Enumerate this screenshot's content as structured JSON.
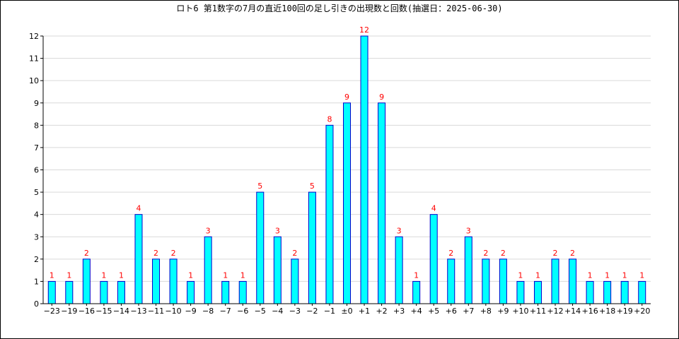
{
  "chart_data": {
    "type": "bar",
    "title": "ロト6 第1数字の7月の直近100回の足し引きの出現数と回数(抽選日：2025-06-30)",
    "xlabel": "",
    "ylabel": "",
    "ylim": [
      0,
      12
    ],
    "yticks": [
      "0",
      "1",
      "2",
      "3",
      "4",
      "5",
      "6",
      "7",
      "8",
      "9",
      "10",
      "11",
      "12"
    ],
    "grid": true,
    "legend": "none",
    "categories": [
      "−23",
      "−19",
      "−16",
      "−15",
      "−14",
      "−13",
      "−11",
      "−10",
      "−9",
      "−8",
      "−7",
      "−6",
      "−5",
      "−4",
      "−3",
      "−2",
      "−1",
      "±0",
      "+1",
      "+2",
      "+3",
      "+4",
      "+5",
      "+6",
      "+7",
      "+8",
      "+9",
      "+10",
      "+11",
      "+12",
      "+14",
      "+16",
      "+18",
      "+19",
      "+20"
    ],
    "values": [
      1,
      1,
      2,
      1,
      1,
      4,
      2,
      2,
      1,
      3,
      1,
      1,
      5,
      3,
      2,
      5,
      8,
      9,
      12,
      9,
      3,
      1,
      4,
      2,
      3,
      2,
      2,
      1,
      1,
      2,
      2,
      1,
      1,
      1,
      1
    ],
    "value_labels": [
      "1",
      "1",
      "2",
      "1",
      "1",
      "4",
      "2",
      "2",
      "1",
      "3",
      "1",
      "1",
      "5",
      "3",
      "2",
      "5",
      "8",
      "9",
      "12",
      "9",
      "3",
      "1",
      "4",
      "2",
      "3",
      "2",
      "2",
      "1",
      "1",
      "2",
      "2",
      "1",
      "1",
      "1",
      "1"
    ],
    "colors": {
      "bar_fill": "#00ffff",
      "bar_stroke": "#0000cc",
      "label": "#ff0000",
      "grid": "#d9d9d9",
      "axis": "#000000"
    }
  }
}
